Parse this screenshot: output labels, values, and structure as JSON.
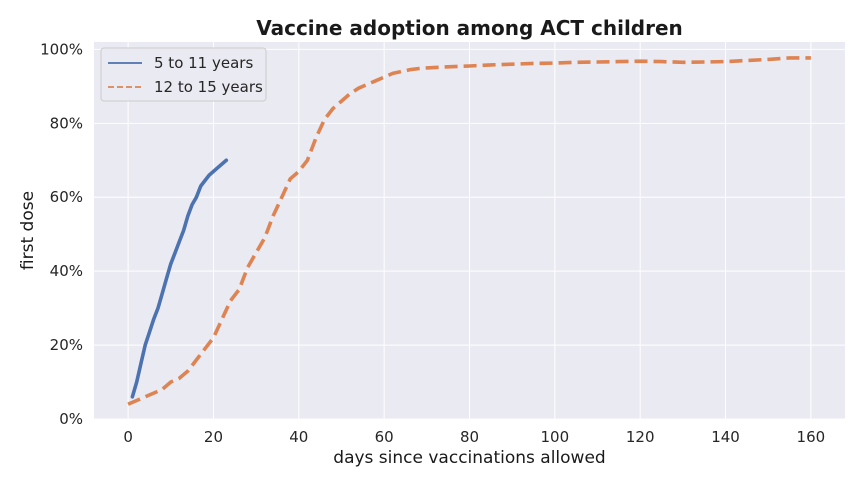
{
  "chart_data": {
    "type": "line",
    "title": "Vaccine adoption among ACT children",
    "xlabel": "days since vaccinations allowed",
    "ylabel": "first dose",
    "xlim": [
      -8,
      168
    ],
    "ylim": [
      0,
      1.02
    ],
    "x_ticks": [
      0,
      20,
      40,
      60,
      80,
      100,
      120,
      140,
      160
    ],
    "x_tick_labels": [
      "0",
      "20",
      "40",
      "60",
      "80",
      "100",
      "120",
      "140",
      "160"
    ],
    "y_ticks": [
      0,
      0.2,
      0.4,
      0.6,
      0.8,
      1.0
    ],
    "y_tick_labels": [
      "0%",
      "20%",
      "40%",
      "60%",
      "80%",
      "100%"
    ],
    "grid": true,
    "legend_position": "top-left",
    "background_color": "#eaeaf2",
    "grid_color": "#ffffff",
    "series": [
      {
        "name": "5 to 11 years",
        "color": "#4c72b0",
        "style": "solid",
        "x": [
          1,
          2,
          3,
          4,
          5,
          6,
          7,
          8,
          9,
          10,
          11,
          12,
          13,
          14,
          15,
          16,
          17,
          18,
          19,
          20,
          21,
          22,
          23
        ],
        "y": [
          0.06,
          0.1,
          0.15,
          0.2,
          0.235,
          0.27,
          0.3,
          0.34,
          0.38,
          0.42,
          0.45,
          0.48,
          0.51,
          0.55,
          0.58,
          0.6,
          0.63,
          0.645,
          0.66,
          0.67,
          0.68,
          0.69,
          0.7
        ]
      },
      {
        "name": "12 to 15 years",
        "color": "#dd8452",
        "style": "dashed",
        "x": [
          0,
          2,
          4,
          6,
          8,
          10,
          12,
          14,
          16,
          18,
          20,
          22,
          24,
          26,
          28,
          30,
          32,
          34,
          36,
          38,
          40,
          42,
          44,
          46,
          48,
          50,
          52,
          54,
          56,
          58,
          60,
          62,
          64,
          66,
          68,
          70,
          75,
          80,
          85,
          90,
          95,
          100,
          105,
          110,
          115,
          120,
          125,
          130,
          135,
          140,
          145,
          150,
          155,
          160
        ],
        "y": [
          0.04,
          0.05,
          0.06,
          0.07,
          0.08,
          0.1,
          0.11,
          0.13,
          0.16,
          0.19,
          0.22,
          0.27,
          0.32,
          0.35,
          0.41,
          0.45,
          0.49,
          0.55,
          0.6,
          0.65,
          0.67,
          0.7,
          0.76,
          0.81,
          0.84,
          0.86,
          0.88,
          0.895,
          0.905,
          0.915,
          0.925,
          0.935,
          0.94,
          0.945,
          0.948,
          0.95,
          0.953,
          0.955,
          0.958,
          0.96,
          0.962,
          0.963,
          0.965,
          0.966,
          0.967,
          0.968,
          0.967,
          0.965,
          0.966,
          0.967,
          0.97,
          0.973,
          0.977,
          0.977
        ]
      }
    ]
  }
}
